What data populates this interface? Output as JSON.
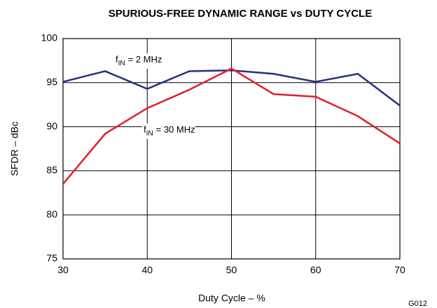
{
  "chart_data": {
    "type": "line",
    "title": "SPURIOUS-FREE DYNAMIC RANGE vs DUTY CYCLE",
    "xlabel": "Duty Cycle – %",
    "ylabel": "SFDR – dBc",
    "figure_id": "G012",
    "x": [
      30,
      35,
      40,
      45,
      50,
      55,
      60,
      65,
      70
    ],
    "series": [
      {
        "name": {
          "base": "f",
          "sub": "IN",
          "text": "= 2 MHz"
        },
        "color": "#26307f",
        "values": [
          95.1,
          96.3,
          94.3,
          96.3,
          96.4,
          96.0,
          95.1,
          96.0,
          92.4
        ]
      },
      {
        "name": {
          "base": "f",
          "sub": "IN",
          "text": "= 30 MHz"
        },
        "color": "#e0202c",
        "values": [
          83.5,
          89.2,
          92.1,
          94.2,
          96.6,
          93.7,
          93.4,
          91.2,
          88.1
        ]
      }
    ],
    "xlim": [
      30,
      70
    ],
    "xticks": [
      30,
      40,
      50,
      60,
      70
    ],
    "ylim": [
      75,
      100
    ],
    "yticks": [
      75,
      80,
      85,
      90,
      95,
      100
    ],
    "grid": true
  }
}
